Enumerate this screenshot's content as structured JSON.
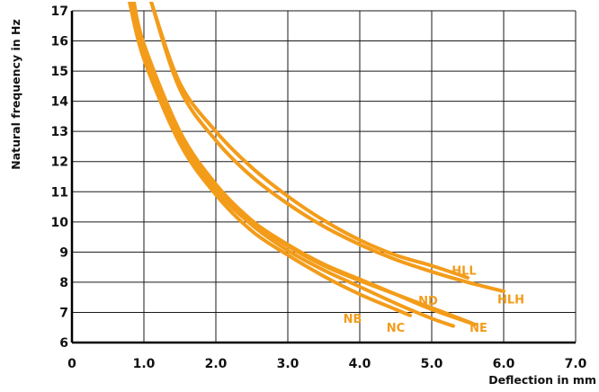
{
  "chart_data": {
    "type": "line",
    "title": "",
    "xlabel": "Deflection in mm",
    "ylabel": "Natural frequency in Hz",
    "xlim": [
      0,
      7
    ],
    "ylim": [
      6,
      17
    ],
    "x_ticks": [
      "0",
      "1.0",
      "2.0",
      "3.0",
      "4.0",
      "5.0",
      "6.0",
      "7.0"
    ],
    "y_ticks": [
      "6",
      "7",
      "8",
      "9",
      "10",
      "11",
      "12",
      "13",
      "14",
      "15",
      "16",
      "17"
    ],
    "grid": true,
    "series_color": "#f39c1a",
    "series": [
      {
        "name": "NB",
        "label_pos": [
          3.9,
          6.8
        ],
        "points": [
          [
            0.8,
            17.3
          ],
          [
            1.0,
            15.4
          ],
          [
            1.5,
            12.6
          ],
          [
            2.0,
            10.9
          ],
          [
            2.5,
            9.7
          ],
          [
            3.0,
            8.9
          ],
          [
            3.5,
            8.2
          ],
          [
            4.0,
            7.6
          ],
          [
            4.5,
            7.1
          ],
          [
            4.7,
            6.9
          ]
        ]
      },
      {
        "name": "NC",
        "label_pos": [
          4.5,
          6.5
        ],
        "points": [
          [
            0.82,
            17.3
          ],
          [
            1.0,
            15.6
          ],
          [
            1.5,
            12.75
          ],
          [
            2.0,
            11.05
          ],
          [
            2.5,
            9.9
          ],
          [
            3.0,
            9.05
          ],
          [
            3.5,
            8.4
          ],
          [
            4.0,
            7.85
          ],
          [
            4.5,
            7.3
          ],
          [
            5.0,
            6.8
          ],
          [
            5.3,
            6.55
          ]
        ]
      },
      {
        "name": "NE",
        "label_pos": [
          5.65,
          6.5
        ],
        "points": [
          [
            0.84,
            17.3
          ],
          [
            1.0,
            15.75
          ],
          [
            1.5,
            12.85
          ],
          [
            2.0,
            11.15
          ],
          [
            2.5,
            10.0
          ],
          [
            3.0,
            9.2
          ],
          [
            3.5,
            8.55
          ],
          [
            4.0,
            8.05
          ],
          [
            4.5,
            7.6
          ],
          [
            5.0,
            7.15
          ],
          [
            5.55,
            6.65
          ]
        ]
      },
      {
        "name": "ND",
        "label_pos": [
          4.95,
          7.4
        ],
        "points": [
          [
            0.86,
            17.3
          ],
          [
            1.0,
            15.9
          ],
          [
            1.5,
            13.0
          ],
          [
            2.0,
            11.25
          ],
          [
            2.5,
            10.05
          ],
          [
            3.0,
            9.25
          ],
          [
            3.5,
            8.6
          ],
          [
            4.0,
            8.1
          ],
          [
            4.5,
            7.6
          ],
          [
            5.0,
            7.1
          ],
          [
            5.6,
            6.6
          ]
        ]
      },
      {
        "name": "HLH",
        "label_pos": [
          6.1,
          7.45
        ],
        "points": [
          [
            1.1,
            17.3
          ],
          [
            1.5,
            14.4
          ],
          [
            2.0,
            12.7
          ],
          [
            2.5,
            11.5
          ],
          [
            3.0,
            10.6
          ],
          [
            3.5,
            9.85
          ],
          [
            4.0,
            9.25
          ],
          [
            4.5,
            8.75
          ],
          [
            5.0,
            8.35
          ],
          [
            5.5,
            8.0
          ],
          [
            6.0,
            7.7
          ]
        ]
      },
      {
        "name": "HLL",
        "label_pos": [
          5.45,
          8.4
        ],
        "points": [
          [
            1.1,
            17.3
          ],
          [
            1.5,
            14.6
          ],
          [
            2.0,
            13.0
          ],
          [
            2.5,
            11.8
          ],
          [
            3.0,
            10.85
          ],
          [
            3.5,
            10.05
          ],
          [
            4.0,
            9.4
          ],
          [
            4.5,
            8.9
          ],
          [
            5.0,
            8.55
          ],
          [
            5.5,
            8.15
          ]
        ]
      }
    ]
  }
}
